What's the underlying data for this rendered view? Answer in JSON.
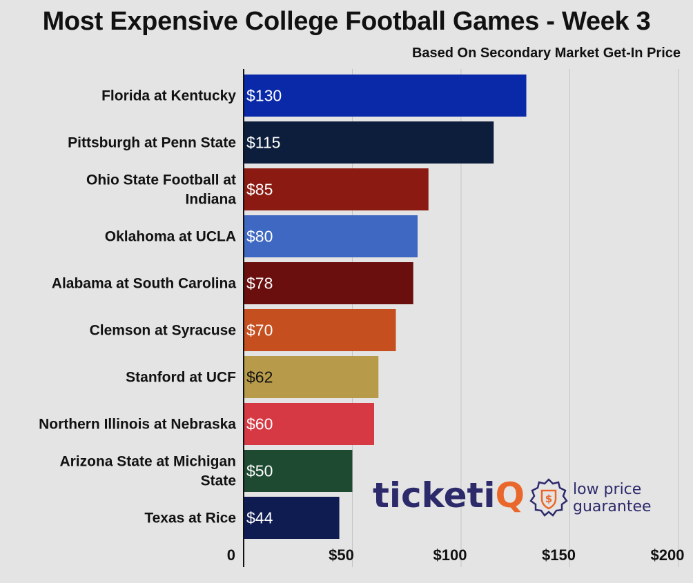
{
  "title": "Most Expensive College Football Games - Week 3",
  "subtitle": "Based On Secondary Market Get-In Price",
  "colors": {
    "background": "#e4e4e4",
    "grid": "#c4c4c4",
    "logo_text": "#2c2a6b",
    "logo_accent": "#e9672b"
  },
  "logo": {
    "name": "ticketiQ",
    "tagline_line1": "low price",
    "tagline_line2": "guarantee",
    "icon": "dollar-badge-icon"
  },
  "chart_data": {
    "type": "bar",
    "orientation": "horizontal",
    "title": "Most Expensive College Football Games - Week 3",
    "subtitle": "Based On Secondary Market Get-In Price",
    "categories": [
      [
        "Florida at Kentucky"
      ],
      [
        "Pittsburgh at Penn State"
      ],
      [
        "Ohio State Football at",
        "Indiana"
      ],
      [
        "Oklahoma at UCLA"
      ],
      [
        "Alabama at South Carolina"
      ],
      [
        "Clemson at Syracuse"
      ],
      [
        "Stanford at UCF"
      ],
      [
        "Northern Illinois at Nebraska"
      ],
      [
        "Arizona State at Michigan",
        "State"
      ],
      [
        "Texas at Rice"
      ]
    ],
    "values": [
      130,
      115,
      85,
      80,
      78,
      70,
      62,
      60,
      50,
      44
    ],
    "value_labels": [
      "$130",
      "$115",
      "$85",
      "$80",
      "$78",
      "$70",
      "$62",
      "$60",
      "$50",
      "$44"
    ],
    "bar_colors": [
      "#0a29a8",
      "#0d1e3d",
      "#8b1b12",
      "#3e68c2",
      "#6a0e0e",
      "#c54f1f",
      "#b89b4a",
      "#d63943",
      "#1f4a32",
      "#0f1c52"
    ],
    "label_colors": [
      "#ffffff",
      "#ffffff",
      "#ffffff",
      "#ffffff",
      "#ffffff",
      "#ffffff",
      "#111111",
      "#ffffff",
      "#ffffff",
      "#ffffff"
    ],
    "xlim": [
      0,
      200
    ],
    "xticks": [
      0,
      50,
      100,
      150,
      200
    ],
    "xtick_labels": [
      "0",
      "$50",
      "$100",
      "$150",
      "$200"
    ],
    "grid": true,
    "xlabel": "",
    "ylabel": ""
  }
}
